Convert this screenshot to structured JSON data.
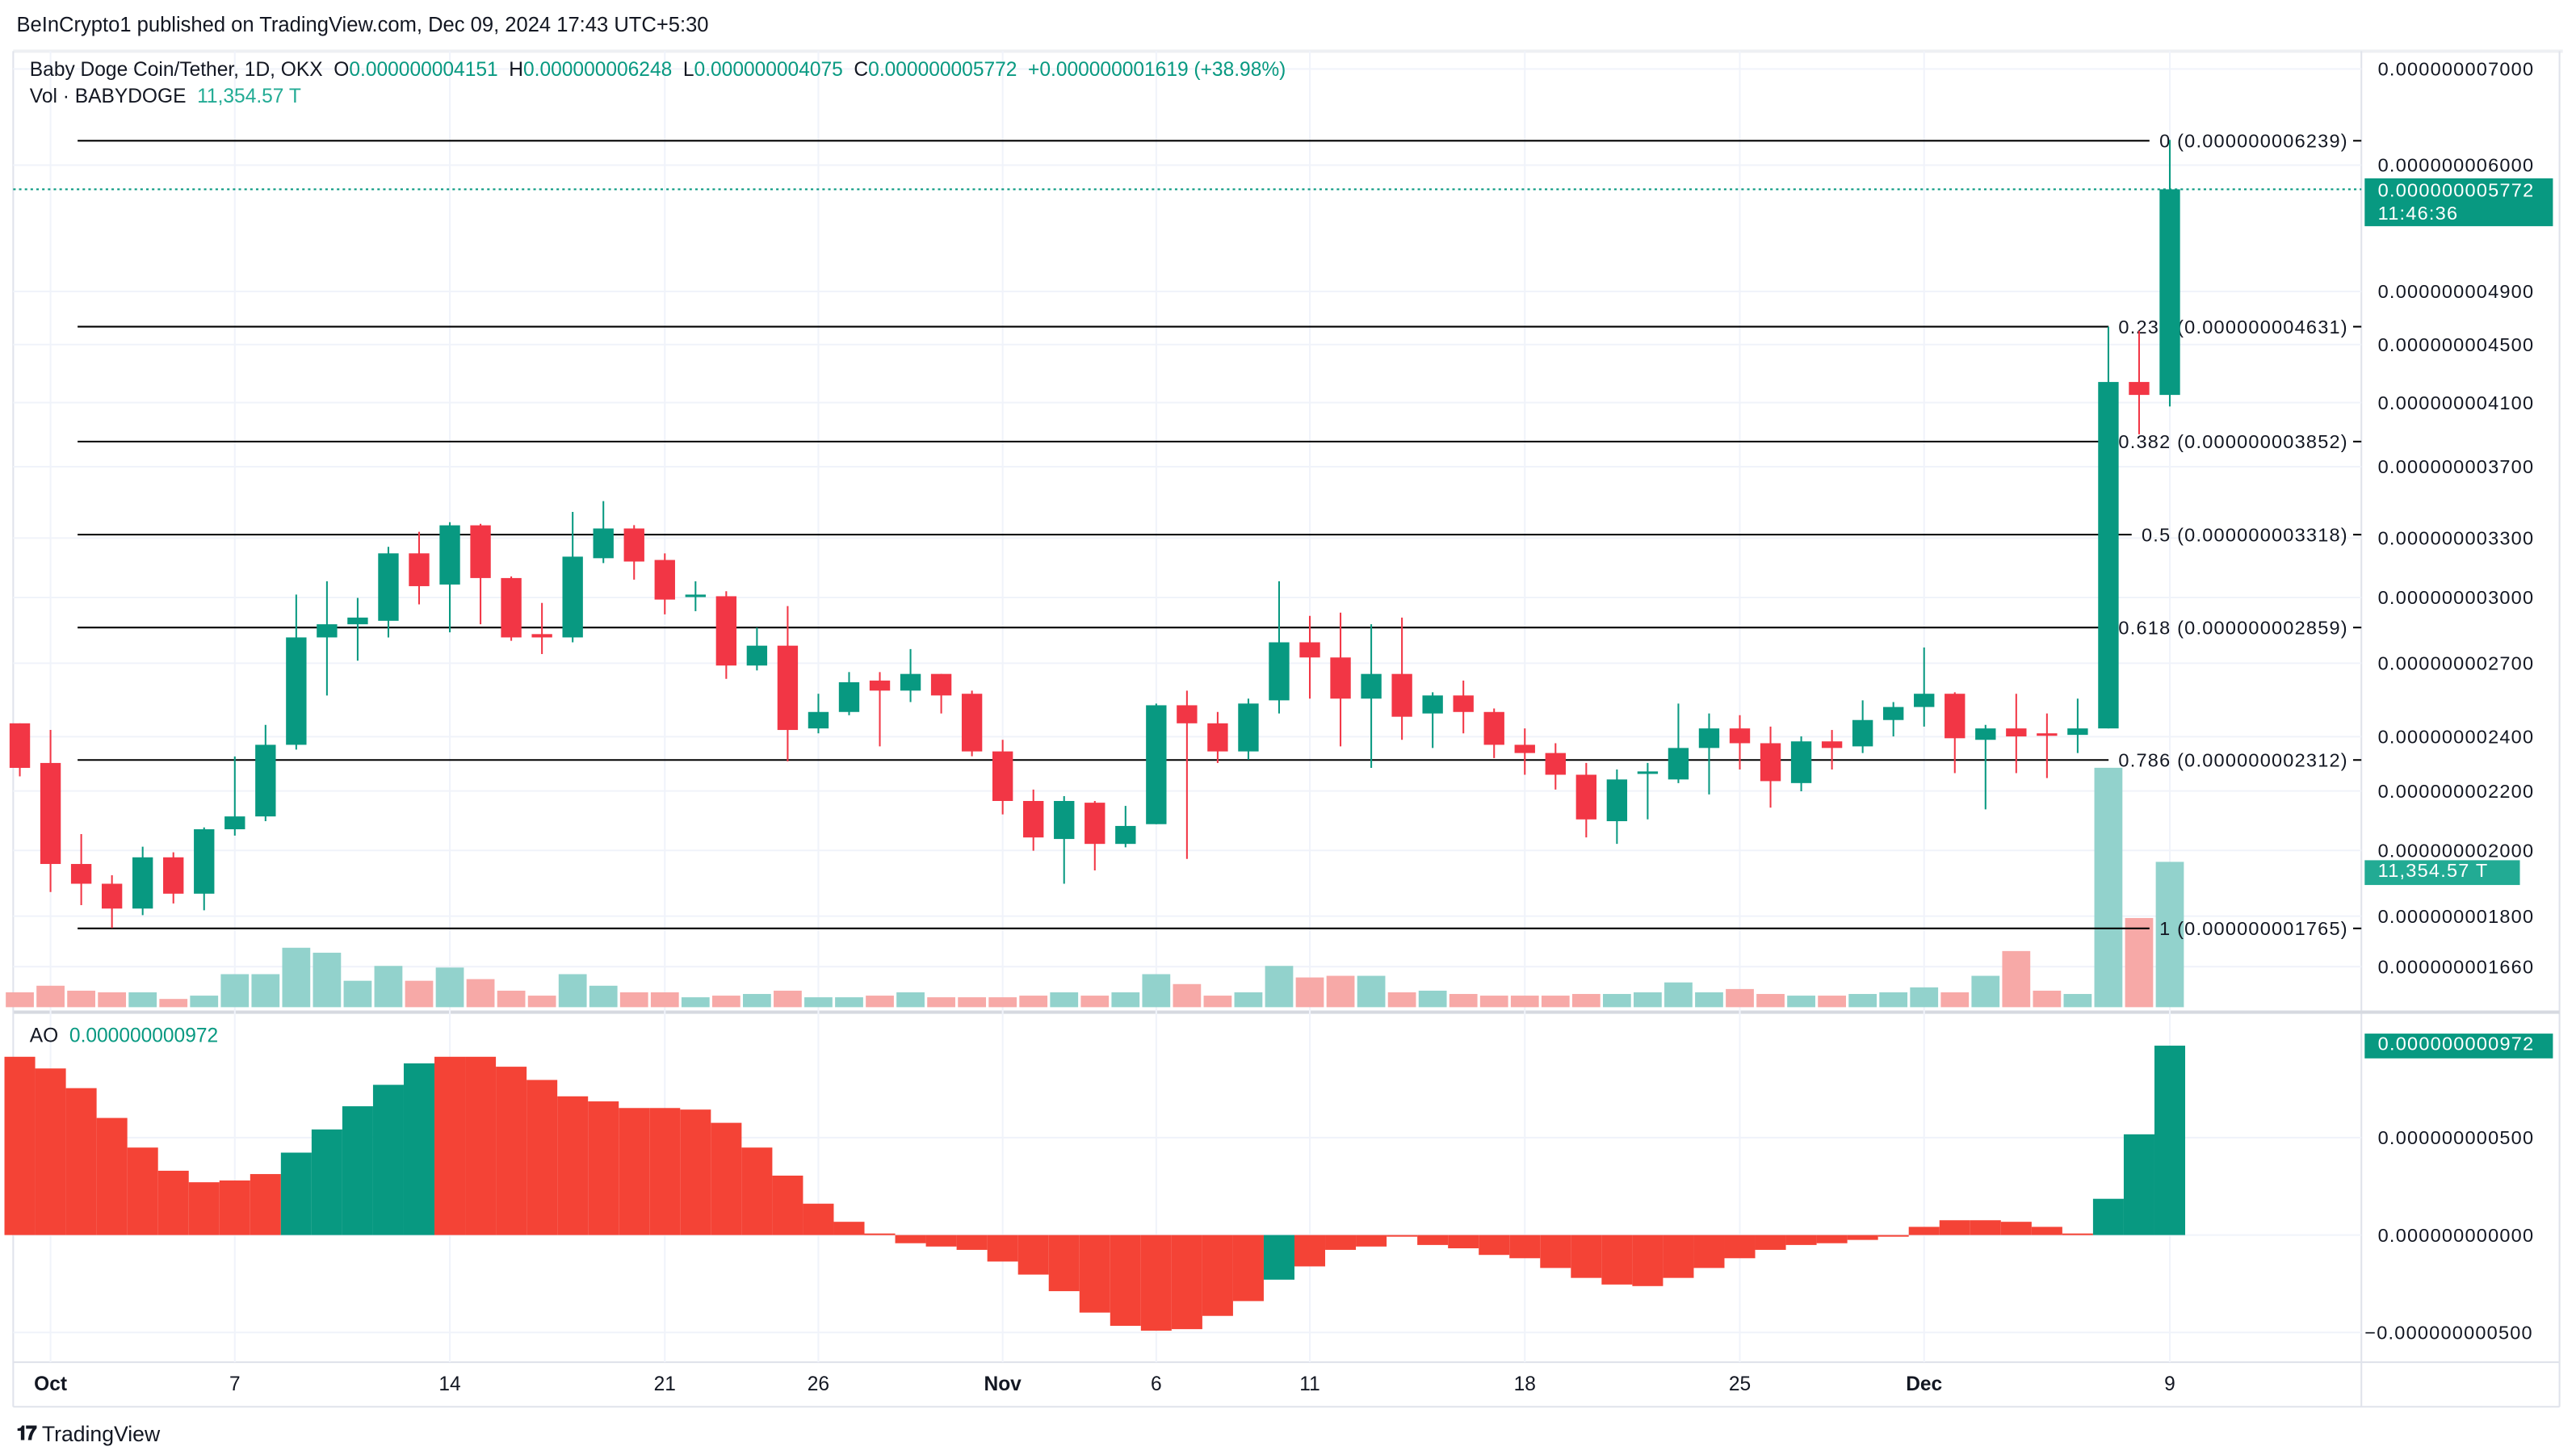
{
  "header": {
    "published": "BeInCrypto1 published on TradingView.com, Dec 09, 2024 17:43 UTC+5:30"
  },
  "legend": {
    "symbol": "Baby Doge Coin/Tether, 1D, OKX",
    "o_label": "O",
    "o_value": "0.000000004151",
    "h_label": "H",
    "h_value": "0.000000006248",
    "l_label": "L",
    "l_value": "0.000000004075",
    "c_label": "C",
    "c_value": "0.000000005772",
    "change": "+0.000000001619 (+38.98%)",
    "vol_label": "Vol · BABYDOGE",
    "vol_value": "11,354.57 T",
    "ao_label": "AO",
    "ao_value": "0.000000000972"
  },
  "tags": {
    "price": "0.000000005772",
    "countdown": "11:46:36",
    "volume": "11,354.57 T",
    "ao": "0.000000000972"
  },
  "footer": {
    "brand": "TradingView"
  },
  "colors": {
    "up": "#089981",
    "down": "#f23645",
    "vol_up": "#92d2cc",
    "vol_down": "#f7a9a7",
    "ao_up": "#089981",
    "ao_down": "#f44336",
    "fib": "#000000"
  },
  "chart_data": {
    "type": "candlestick",
    "title": "Baby Doge Coin/Tether, 1D, OKX",
    "value_scale": "1e-12",
    "price_scale": "log",
    "first_date": "2024-09-30",
    "last_date": "2024-12-09",
    "x_ticks": [
      {
        "index": 1,
        "label": "Oct",
        "bold": true
      },
      {
        "index": 7,
        "label": "7"
      },
      {
        "index": 14,
        "label": "14"
      },
      {
        "index": 21,
        "label": "21"
      },
      {
        "index": 26,
        "label": "26"
      },
      {
        "index": 32,
        "label": "Nov",
        "bold": true
      },
      {
        "index": 37,
        "label": "6"
      },
      {
        "index": 42,
        "label": "11"
      },
      {
        "index": 49,
        "label": "18"
      },
      {
        "index": 56,
        "label": "25"
      },
      {
        "index": 62,
        "label": "Dec",
        "bold": true
      },
      {
        "index": 70,
        "label": "9"
      }
    ],
    "price_ticks": [
      {
        "value": 7000,
        "label": "0.000000007000"
      },
      {
        "value": 6000,
        "label": "0.000000006000"
      },
      {
        "value": 4900,
        "label": "0.000000004900"
      },
      {
        "value": 4500,
        "label": "0.000000004500"
      },
      {
        "value": 4100,
        "label": "0.000000004100"
      },
      {
        "value": 3700,
        "label": "0.000000003700"
      },
      {
        "value": 3300,
        "label": "0.000000003300"
      },
      {
        "value": 3000,
        "label": "0.000000003000"
      },
      {
        "value": 2700,
        "label": "0.000000002700"
      },
      {
        "value": 2400,
        "label": "0.000000002400"
      },
      {
        "value": 2200,
        "label": "0.000000002200"
      },
      {
        "value": 2000,
        "label": "0.000000002000"
      },
      {
        "value": 1800,
        "label": "0.000000001800"
      },
      {
        "value": 1660,
        "label": "0.000000001660"
      }
    ],
    "ao_ticks": [
      {
        "value": 500,
        "label": "0.000000000500"
      },
      {
        "value": 0,
        "label": "0.000000000000"
      },
      {
        "value": -500,
        "label": "−0.000000000500"
      }
    ],
    "fib_levels": [
      {
        "ratio": "0",
        "price": 6239,
        "label": "0 (0.000000006239)"
      },
      {
        "ratio": "0.236",
        "price": 4631,
        "label": "0.236 (0.000000004631)"
      },
      {
        "ratio": "0.382",
        "price": 3852,
        "label": "0.382 (0.000000003852)"
      },
      {
        "ratio": "0.5",
        "price": 3318,
        "label": "0.5 (0.000000003318)"
      },
      {
        "ratio": "0.618",
        "price": 2859,
        "label": "0.618 (0.000000002859)"
      },
      {
        "ratio": "0.786",
        "price": 2312,
        "label": "0.786 (0.000000002312)"
      },
      {
        "ratio": "1",
        "price": 1765,
        "label": "1 (0.000000001765)"
      }
    ],
    "ohlc": [
      [
        2452,
        2452,
        2252,
        2283
      ],
      [
        2301,
        2426,
        1871,
        1957
      ],
      [
        1957,
        2053,
        1832,
        1896
      ],
      [
        1896,
        1922,
        1766,
        1822
      ],
      [
        1822,
        2012,
        1803,
        1978
      ],
      [
        1978,
        1994,
        1837,
        1866
      ],
      [
        1866,
        2075,
        1817,
        2069
      ],
      [
        2069,
        2325,
        2048,
        2112
      ],
      [
        2112,
        2446,
        2096,
        2369
      ],
      [
        2369,
        3014,
        2351,
        2814
      ],
      [
        2814,
        3079,
        2564,
        2874
      ],
      [
        2874,
        2998,
        2711,
        2905
      ],
      [
        2890,
        3254,
        2814,
        3220
      ],
      [
        3220,
        3333,
        2967,
        3055
      ],
      [
        3063,
        3385,
        2837,
        3368
      ],
      [
        3368,
        3376,
        2874,
        3095
      ],
      [
        3095,
        3103,
        2799,
        2814
      ],
      [
        2829,
        2974,
        2740,
        2814
      ],
      [
        2814,
        3441,
        2792,
        3203
      ],
      [
        3195,
        3501,
        3170,
        3351
      ],
      [
        3351,
        3369,
        3087,
        3178
      ],
      [
        3186,
        3220,
        2920,
        2990
      ],
      [
        3006,
        3079,
        2935,
        3014
      ],
      [
        3006,
        3030,
        2633,
        2690
      ],
      [
        2690,
        2859,
        2669,
        2777
      ],
      [
        2777,
        2959,
        2307,
        2426
      ],
      [
        2432,
        2571,
        2413,
        2497
      ],
      [
        2497,
        2662,
        2484,
        2619
      ],
      [
        2626,
        2662,
        2363,
        2584
      ],
      [
        2584,
        2762,
        2537,
        2654
      ],
      [
        2654,
        2654,
        2491,
        2564
      ],
      [
        2571,
        2584,
        2326,
        2344
      ],
      [
        2344,
        2388,
        2119,
        2165
      ],
      [
        2165,
        2205,
        1999,
        2042
      ],
      [
        2037,
        2182,
        1896,
        2165
      ],
      [
        2159,
        2165,
        1937,
        2021
      ],
      [
        2021,
        2148,
        2010,
        2080
      ],
      [
        2086,
        2531,
        2086,
        2524
      ],
      [
        2524,
        2584,
        1973,
        2452
      ],
      [
        2452,
        2497,
        2301,
        2344
      ],
      [
        2344,
        2551,
        2313,
        2531
      ],
      [
        2544,
        3079,
        2491,
        2792
      ],
      [
        2792,
        2913,
        2551,
        2725
      ],
      [
        2725,
        2928,
        2363,
        2551
      ],
      [
        2551,
        2874,
        2283,
        2654
      ],
      [
        2654,
        2905,
        2388,
        2478
      ],
      [
        2491,
        2577,
        2357,
        2564
      ],
      [
        2564,
        2626,
        2413,
        2497
      ],
      [
        2497,
        2511,
        2319,
        2369
      ],
      [
        2369,
        2432,
        2258,
        2338
      ],
      [
        2338,
        2375,
        2205,
        2258
      ],
      [
        2258,
        2301,
        2042,
        2102
      ],
      [
        2096,
        2277,
        2021,
        2241
      ],
      [
        2264,
        2301,
        2102,
        2270
      ],
      [
        2241,
        2531,
        2228,
        2357
      ],
      [
        2357,
        2491,
        2188,
        2432
      ],
      [
        2432,
        2484,
        2277,
        2375
      ],
      [
        2375,
        2439,
        2142,
        2235
      ],
      [
        2228,
        2401,
        2199,
        2382
      ],
      [
        2382,
        2426,
        2277,
        2357
      ],
      [
        2363,
        2544,
        2338,
        2465
      ],
      [
        2465,
        2537,
        2401,
        2517
      ],
      [
        2517,
        2769,
        2439,
        2571
      ],
      [
        2571,
        2577,
        2264,
        2394
      ],
      [
        2388,
        2446,
        2136,
        2432
      ],
      [
        2432,
        2571,
        2264,
        2401
      ],
      [
        2413,
        2491,
        2246,
        2407
      ],
      [
        2407,
        2551,
        2338,
        2432
      ],
      [
        2432,
        4631,
        2432,
        4238
      ],
      [
        4238,
        4600,
        3897,
        4151
      ],
      [
        4151,
        6248,
        4075,
        5772
      ]
    ],
    "volume_T": [
      1161,
      1677,
      1290,
      1161,
      1161,
      645,
      903,
      2580,
      2580,
      4644,
      4257,
      2064,
      3225,
      2064,
      3096,
      2193,
      1290,
      903,
      2580,
      1677,
      1161,
      1161,
      774,
      903,
      1032,
      1290,
      774,
      774,
      903,
      1161,
      774,
      774,
      774,
      903,
      1161,
      903,
      1161,
      2580,
      1806,
      903,
      1161,
      3225,
      2322,
      2451,
      2451,
      1161,
      1290,
      1032,
      903,
      903,
      903,
      1032,
      1032,
      1161,
      1935,
      1161,
      1419,
      1032,
      903,
      903,
      1032,
      1161,
      1548,
      1161,
      2451,
      4386,
      1290,
      1032,
      18705,
      6966,
      11355
    ],
    "ao": [
      915,
      855,
      754,
      601,
      449,
      330,
      271,
      280,
      313,
      423,
      542,
      661,
      771,
      881,
      915,
      915,
      864,
      796,
      712,
      686,
      652,
      652,
      644,
      576,
      449,
      305,
      161,
      68,
      8,
      -42,
      -59,
      -76,
      -136,
      -203,
      -288,
      -398,
      -466,
      -491,
      -483,
      -415,
      -339,
      -229,
      -161,
      -76,
      -59,
      -8,
      -51,
      -68,
      -102,
      -119,
      -169,
      -220,
      -254,
      -262,
      -220,
      -169,
      -119,
      -76,
      -51,
      -42,
      -25,
      -8,
      42,
      76,
      76,
      68,
      42,
      8,
      186,
      517,
      972
    ],
    "ao_colors": [
      "down",
      "down",
      "down",
      "down",
      "down",
      "down",
      "down",
      "down",
      "down",
      "up",
      "up",
      "up",
      "up",
      "up",
      "down",
      "down",
      "down",
      "down",
      "down",
      "down",
      "down",
      "down",
      "down",
      "down",
      "down",
      "down",
      "down",
      "down",
      "down",
      "down",
      "down",
      "down",
      "down",
      "down",
      "down",
      "down",
      "down",
      "down",
      "down",
      "down",
      "down",
      "up",
      "down",
      "down",
      "down",
      "down",
      "down",
      "down",
      "down",
      "down",
      "down",
      "down",
      "down",
      "down",
      "down",
      "down",
      "down",
      "down",
      "down",
      "down",
      "down",
      "down",
      "down",
      "down",
      "down",
      "down",
      "down",
      "down",
      "up",
      "up",
      "up"
    ]
  }
}
